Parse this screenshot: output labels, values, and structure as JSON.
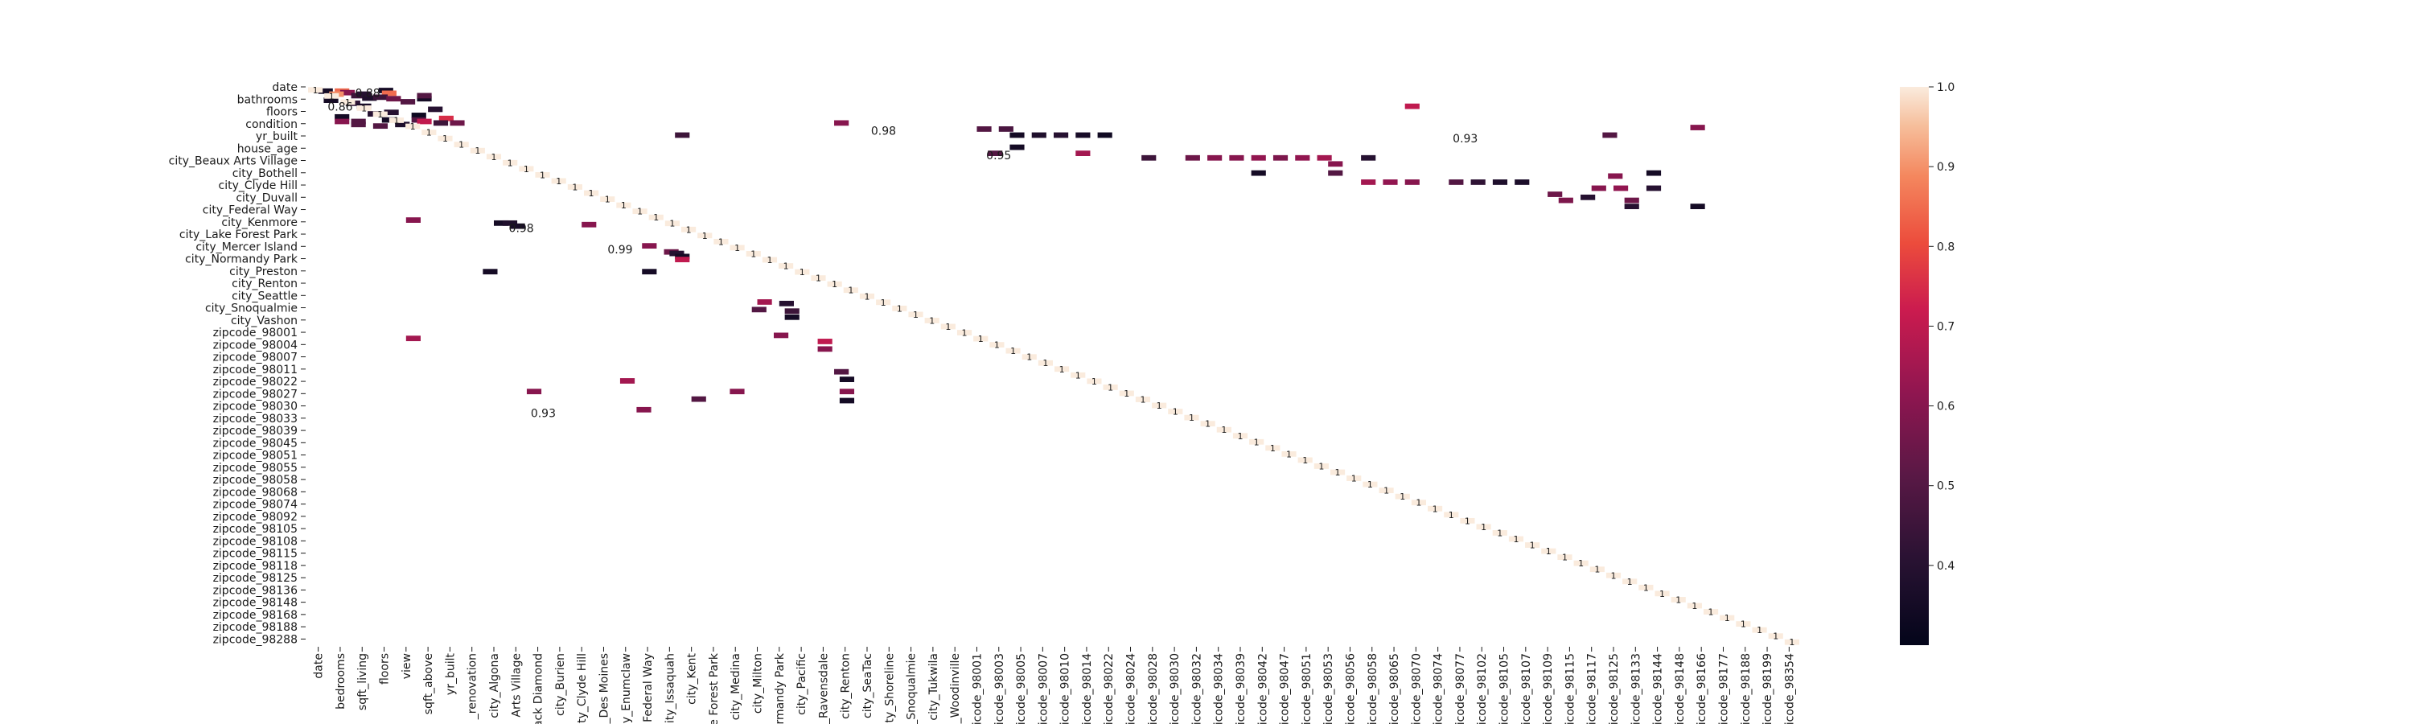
{
  "chart_data": {
    "type": "heatmap",
    "title": "",
    "xlabel": "",
    "ylabel": "",
    "color_range": [
      0.3,
      1.0
    ],
    "colormap": "rocket",
    "colorbar_ticks": [
      "1.0",
      "0.9",
      "0.8",
      "0.7",
      "0.6",
      "0.5",
      "0.4"
    ],
    "colorbar_tick_values": [
      1.0,
      0.9,
      0.8,
      0.7,
      0.6,
      0.5,
      0.4
    ],
    "y_tick_labels": [
      "date",
      "bathrooms",
      "floors",
      "condition",
      "yr_built",
      "house_age",
      "city_Beaux Arts Village",
      "city_Bothell",
      "city_Clyde Hill",
      "city_Duvall",
      "city_Federal Way",
      "city_Kenmore",
      "city_Lake Forest Park",
      "city_Mercer Island",
      "city_Normandy Park",
      "city_Preston",
      "city_Renton",
      "city_Seattle",
      "city_Snoqualmie",
      "city_Vashon",
      "zipcode_98001",
      "zipcode_98004",
      "zipcode_98007",
      "zipcode_98011",
      "zipcode_98022",
      "zipcode_98027",
      "zipcode_98030",
      "zipcode_98033",
      "zipcode_98039",
      "zipcode_98045",
      "zipcode_98051",
      "zipcode_98055",
      "zipcode_98058",
      "zipcode_98068",
      "zipcode_98074",
      "zipcode_98092",
      "zipcode_98105",
      "zipcode_98108",
      "zipcode_98115",
      "zipcode_98118",
      "zipcode_98125",
      "zipcode_98136",
      "zipcode_98148",
      "zipcode_98168",
      "zipcode_98188",
      "zipcode_98288"
    ],
    "x_tick_labels": [
      "date",
      "bedrooms",
      "sqft_living",
      "floors",
      "view",
      "sqft_above",
      "yr_built",
      "_renovation",
      "city_Algona",
      "Arts Village",
      "ack Diamond",
      "city_Burien",
      "city_Clyde Hill",
      "_Des Moines",
      "y_Enumclaw",
      "Federal Way",
      "city_Issaquah",
      "city_Kent",
      "e Forest Park",
      "city_Medina",
      "city_Milton",
      "rmandy Park",
      "city_Pacific",
      "_Ravensdale",
      "city_Renton",
      "city_SeaTac",
      "ty_Shoreline",
      "_Snoqualmie",
      "city_Tukwila",
      "_Woodinville",
      "icode_98001",
      "icode_98003",
      "icode_98005",
      "icode_98007",
      "icode_98010",
      "icode_98014",
      "icode_98022",
      "icode_98024",
      "icode_98028",
      "icode_98030",
      "icode_98032",
      "icode_98034",
      "icode_98039",
      "icode_98042",
      "icode_98047",
      "icode_98051",
      "icode_98053",
      "icode_98056",
      "icode_98058",
      "icode_98065",
      "icode_98070",
      "icode_98074",
      "icode_98077",
      "icode_98102",
      "icode_98105",
      "icode_98107",
      "icode_98109",
      "icode_98115",
      "icode_98117",
      "icode_98125",
      "icode_98133",
      "icode_98144",
      "icode_98148",
      "icode_98166",
      "icode_98177",
      "icode_98188",
      "icode_98199",
      "icode_98354"
    ],
    "diagonal_value": 1,
    "diagonal_annotation": "1",
    "annotations": [
      {
        "row": 0.0,
        "col": 0.0,
        "value": 1,
        "text": "1"
      },
      {
        "row": 1.0,
        "col": 1.0,
        "value": 1,
        "text": "1"
      },
      {
        "row": 3.0,
        "col": 3.0,
        "value": 1,
        "text": "1"
      },
      {
        "row": 4.0,
        "col": 4.0,
        "value": 1,
        "text": "1"
      },
      {
        "row": 5.0,
        "col": 5.0,
        "value": 1,
        "text": "1"
      },
      {
        "row": 6.0,
        "col": 6.0,
        "value": 1,
        "text": "1"
      },
      {
        "row": 7.0,
        "col": 7.0,
        "value": 1,
        "text": "1"
      },
      {
        "row": 8.0,
        "col": 8.0,
        "value": 1,
        "text": "1"
      },
      {
        "row": 9.0,
        "col": 9.0,
        "value": 1,
        "text": "1"
      },
      {
        "row": 10.0,
        "col": 10.0,
        "value": 1,
        "text": "1"
      },
      {
        "row": 2.0,
        "col": 5.5,
        "value": 0.88,
        "text": "0.88"
      },
      {
        "row": 6.5,
        "col": 3.0,
        "value": 0.86,
        "text": "0.86"
      },
      {
        "row": 14.5,
        "col": 52.5,
        "value": 0.98,
        "text": "0.98"
      },
      {
        "row": 17.0,
        "col": 56.5,
        "value": 1,
        "text": "1"
      },
      {
        "row": 19.0,
        "col": 59.5,
        "value": 1,
        "text": "1"
      },
      {
        "row": 22.5,
        "col": 63.0,
        "value": 0.95,
        "text": "0.95"
      },
      {
        "row": 17.0,
        "col": 105.5,
        "value": 0.93,
        "text": "0.93"
      },
      {
        "row": 26.0,
        "col": 113.0,
        "value": 1,
        "text": "1"
      },
      {
        "row": 34.5,
        "col": 111.5,
        "value": 1,
        "text": "1"
      },
      {
        "row": 46.5,
        "col": 19.5,
        "value": 0.98,
        "text": "0.98"
      },
      {
        "row": 47.0,
        "col": 21.5,
        "value": 1,
        "text": "1"
      },
      {
        "row": 50.0,
        "col": 24.5,
        "value": 1,
        "text": "1"
      },
      {
        "row": 50.5,
        "col": 25.5,
        "value": 1,
        "text": "1"
      },
      {
        "row": 51.5,
        "col": 26.5,
        "value": 1,
        "text": "1"
      },
      {
        "row": 53.5,
        "col": 28.5,
        "value": 0.99,
        "text": "0.99"
      },
      {
        "row": 57.0,
        "col": 31.0,
        "value": 1,
        "text": "1"
      },
      {
        "row": 57.5,
        "col": 31.5,
        "value": 1,
        "text": "1"
      },
      {
        "row": 58.0,
        "col": 32.5,
        "value": 1,
        "text": "1"
      },
      {
        "row": 64.5,
        "col": 39.0,
        "value": 1,
        "text": "1"
      },
      {
        "row": 65.0,
        "col": 40.0,
        "value": 1,
        "text": "1"
      },
      {
        "row": 66.0,
        "col": 41.0,
        "value": 1,
        "text": "1"
      },
      {
        "row": 66.5,
        "col": 42.0,
        "value": 1,
        "text": "1"
      },
      {
        "row": 82.0,
        "col": 43.0,
        "value": 1,
        "text": "1"
      },
      {
        "row": 83.0,
        "col": 45.0,
        "value": 1,
        "text": "1"
      },
      {
        "row": 84.0,
        "col": 46.0,
        "value": 1,
        "text": "1"
      },
      {
        "row": 107.5,
        "col": 21.5,
        "value": 0.93,
        "text": "0.93"
      },
      {
        "row": 109.0,
        "col": 33.5,
        "value": 1,
        "text": "1"
      },
      {
        "row": 108.0,
        "col": 44.0,
        "value": 1,
        "text": "1"
      }
    ],
    "off_diagonal_cells": [
      {
        "row": 0.5,
        "col": 1.0,
        "value": 0.35
      },
      {
        "row": 0.5,
        "col": 2.5,
        "value": 0.85
      },
      {
        "row": 1.0,
        "col": 3.0,
        "value": 0.6
      },
      {
        "row": 1.5,
        "col": 2.0,
        "value": 0.9
      },
      {
        "row": 0.3,
        "col": 6.5,
        "value": 0.35
      },
      {
        "row": 1.2,
        "col": 6.8,
        "value": 0.85
      },
      {
        "row": 2.0,
        "col": 4.0,
        "value": 0.45
      },
      {
        "row": 2.8,
        "col": 5.0,
        "value": 0.38
      },
      {
        "row": 3.5,
        "col": 1.5,
        "value": 0.35
      },
      {
        "row": 4.5,
        "col": 3.5,
        "value": 0.42
      },
      {
        "row": 5.5,
        "col": 4.5,
        "value": 0.36
      },
      {
        "row": 7.5,
        "col": 7.0,
        "value": 0.4
      },
      {
        "row": 8.5,
        "col": 9.5,
        "value": 0.33
      },
      {
        "row": 10.0,
        "col": 9.5,
        "value": 0.5
      },
      {
        "row": 10.5,
        "col": 10.0,
        "value": 0.7
      },
      {
        "row": 11.5,
        "col": 8.0,
        "value": 0.38
      },
      {
        "row": 1.5,
        "col": 4.5,
        "value": 0.4
      },
      {
        "row": 2.5,
        "col": 6.0,
        "value": 0.45
      },
      {
        "row": 3.0,
        "col": 7.2,
        "value": 0.55
      },
      {
        "row": 9.0,
        "col": 2.5,
        "value": 0.35
      },
      {
        "row": 8.0,
        "col": 5.5,
        "value": 0.4
      },
      {
        "row": 10.5,
        "col": 4.0,
        "value": 0.5
      },
      {
        "row": 9.5,
        "col": 12.0,
        "value": 0.75
      },
      {
        "row": 11.0,
        "col": 13.0,
        "value": 0.55
      },
      {
        "row": 4.0,
        "col": 8.5,
        "value": 0.5
      },
      {
        "row": 6.5,
        "col": 11.0,
        "value": 0.4
      },
      {
        "row": 12.0,
        "col": 6.0,
        "value": 0.5
      },
      {
        "row": 10.0,
        "col": 6.8,
        "value": 0.35
      },
      {
        "row": 11.0,
        "col": 11.5,
        "value": 0.45
      },
      {
        "row": 3.0,
        "col": 10.0,
        "value": 0.35
      },
      {
        "row": 11.5,
        "col": 4.0,
        "value": 0.5
      },
      {
        "row": 10.5,
        "col": 2.5,
        "value": 0.6
      },
      {
        "row": 2.0,
        "col": 10.0,
        "value": 0.5
      },
      {
        "row": 15.0,
        "col": 33.5,
        "value": 0.45
      },
      {
        "row": 13.0,
        "col": 61.0,
        "value": 0.5
      },
      {
        "row": 13.0,
        "col": 63.0,
        "value": 0.48
      },
      {
        "row": 15.0,
        "col": 64.0,
        "value": 0.35
      },
      {
        "row": 15.0,
        "col": 66.0,
        "value": 0.38
      },
      {
        "row": 15.0,
        "col": 68.0,
        "value": 0.4
      },
      {
        "row": 15.0,
        "col": 70.0,
        "value": 0.36
      },
      {
        "row": 15.0,
        "col": 72.0,
        "value": 0.34
      },
      {
        "row": 19.0,
        "col": 64.0,
        "value": 0.35
      },
      {
        "row": 21.0,
        "col": 62.0,
        "value": 0.5
      },
      {
        "row": 21.0,
        "col": 70.0,
        "value": 0.65
      },
      {
        "row": 22.5,
        "col": 76.0,
        "value": 0.45
      },
      {
        "row": 22.5,
        "col": 80.0,
        "value": 0.55
      },
      {
        "row": 22.5,
        "col": 82.0,
        "value": 0.6
      },
      {
        "row": 22.5,
        "col": 84.0,
        "value": 0.6
      },
      {
        "row": 22.5,
        "col": 86.0,
        "value": 0.62
      },
      {
        "row": 22.5,
        "col": 88.0,
        "value": 0.58
      },
      {
        "row": 22.5,
        "col": 90.0,
        "value": 0.62
      },
      {
        "row": 22.5,
        "col": 92.0,
        "value": 0.65
      },
      {
        "row": 22.5,
        "col": 96.0,
        "value": 0.4
      },
      {
        "row": 24.5,
        "col": 93.0,
        "value": 0.6
      },
      {
        "row": 27.5,
        "col": 86.0,
        "value": 0.35
      },
      {
        "row": 27.5,
        "col": 93.0,
        "value": 0.5
      },
      {
        "row": 30.5,
        "col": 96.0,
        "value": 0.65
      },
      {
        "row": 30.5,
        "col": 98.0,
        "value": 0.62
      },
      {
        "row": 30.5,
        "col": 100.0,
        "value": 0.6
      },
      {
        "row": 30.5,
        "col": 104.0,
        "value": 0.5
      },
      {
        "row": 30.5,
        "col": 106.0,
        "value": 0.42
      },
      {
        "row": 30.5,
        "col": 108.0,
        "value": 0.38
      },
      {
        "row": 30.5,
        "col": 110.0,
        "value": 0.37
      },
      {
        "row": 32.5,
        "col": 117.0,
        "value": 0.6
      },
      {
        "row": 32.5,
        "col": 119.0,
        "value": 0.62
      },
      {
        "row": 34.5,
        "col": 113.0,
        "value": 0.55
      },
      {
        "row": 36.5,
        "col": 114.0,
        "value": 0.58
      },
      {
        "row": 36.5,
        "col": 120.0,
        "value": 0.55
      },
      {
        "row": 11.0,
        "col": 48.0,
        "value": 0.6
      },
      {
        "row": 5.5,
        "col": 100.0,
        "value": 0.7
      },
      {
        "row": 12.5,
        "col": 126.0,
        "value": 0.6
      },
      {
        "row": 27.5,
        "col": 122.0,
        "value": 0.35
      },
      {
        "row": 32.5,
        "col": 122.0,
        "value": 0.4
      },
      {
        "row": 15.0,
        "col": 118.0,
        "value": 0.5
      },
      {
        "row": 28.5,
        "col": 118.5,
        "value": 0.6
      },
      {
        "row": 35.5,
        "col": 116.0,
        "value": 0.4
      },
      {
        "row": 38.5,
        "col": 126.0,
        "value": 0.35
      },
      {
        "row": 38.5,
        "col": 120.0,
        "value": 0.4
      },
      {
        "row": 43.0,
        "col": 9.0,
        "value": 0.6
      },
      {
        "row": 44.0,
        "col": 17.0,
        "value": 0.35
      },
      {
        "row": 44.0,
        "col": 17.8,
        "value": 0.38
      },
      {
        "row": 45.0,
        "col": 18.5,
        "value": 0.36
      },
      {
        "row": 44.5,
        "col": 25.0,
        "value": 0.6
      },
      {
        "row": 51.5,
        "col": 30.5,
        "value": 0.6
      },
      {
        "row": 53.5,
        "col": 32.5,
        "value": 0.55
      },
      {
        "row": 54.0,
        "col": 33.0,
        "value": 0.4
      },
      {
        "row": 55.0,
        "col": 33.5,
        "value": 0.35
      },
      {
        "row": 56.0,
        "col": 33.5,
        "value": 0.7
      },
      {
        "row": 60.0,
        "col": 30.5,
        "value": 0.35
      },
      {
        "row": 72.5,
        "col": 40.5,
        "value": 0.5
      },
      {
        "row": 70.0,
        "col": 41.0,
        "value": 0.65
      },
      {
        "row": 70.5,
        "col": 43.0,
        "value": 0.4
      },
      {
        "row": 73.0,
        "col": 43.5,
        "value": 0.45
      },
      {
        "row": 75.0,
        "col": 43.5,
        "value": 0.35
      },
      {
        "row": 81.0,
        "col": 42.5,
        "value": 0.6
      },
      {
        "row": 83.0,
        "col": 46.5,
        "value": 0.7
      },
      {
        "row": 85.5,
        "col": 46.5,
        "value": 0.6
      },
      {
        "row": 82.0,
        "col": 9.0,
        "value": 0.65
      },
      {
        "row": 60.0,
        "col": 16.0,
        "value": 0.35
      },
      {
        "row": 93.0,
        "col": 48.0,
        "value": 0.5
      },
      {
        "row": 95.5,
        "col": 48.5,
        "value": 0.35
      },
      {
        "row": 99.5,
        "col": 48.5,
        "value": 0.6
      },
      {
        "row": 102.5,
        "col": 48.5,
        "value": 0.35
      },
      {
        "row": 102.0,
        "col": 35.0,
        "value": 0.5
      },
      {
        "row": 96.0,
        "col": 28.5,
        "value": 0.65
      },
      {
        "row": 99.5,
        "col": 20.0,
        "value": 0.6
      },
      {
        "row": 99.5,
        "col": 38.5,
        "value": 0.6
      },
      {
        "row": 105.5,
        "col": 30.0,
        "value": 0.6
      }
    ]
  }
}
